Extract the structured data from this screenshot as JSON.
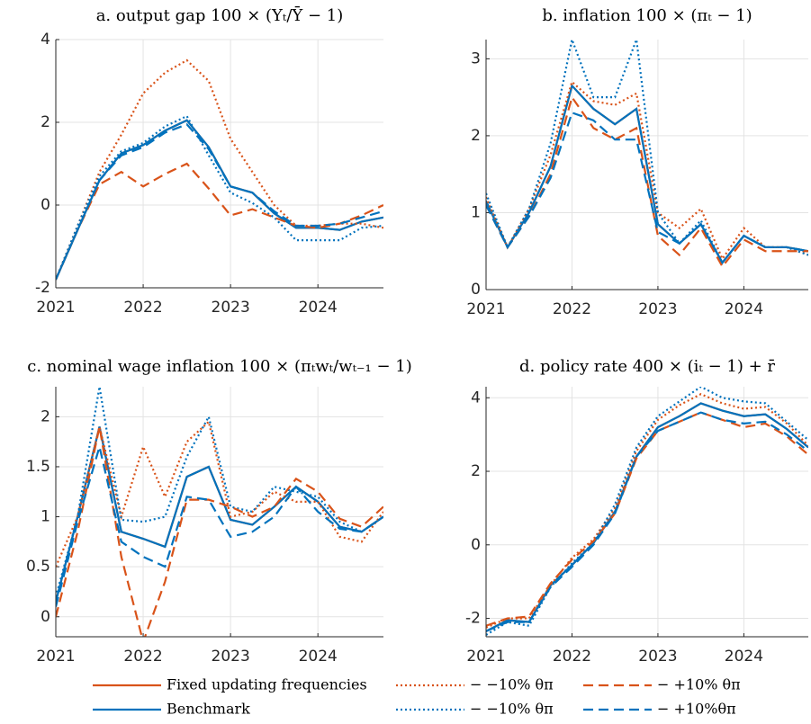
{
  "chart_data": [
    {
      "type": "line",
      "title": "a. output gap 100 × (Yₜ/Ȳ − 1)",
      "x": [
        2021,
        2021.25,
        2021.5,
        2021.75,
        2022,
        2022.25,
        2022.5,
        2022.75,
        2023,
        2023.25,
        2023.5,
        2023.75,
        2024,
        2024.25,
        2024.5,
        2024.75
      ],
      "xlim": [
        2021,
        2024.75
      ],
      "xticks": [
        2021,
        2022,
        2023,
        2024
      ],
      "ylim": [
        -2,
        4
      ],
      "yticks": [
        -2,
        0,
        2,
        4
      ],
      "grid": true,
      "series": [
        {
          "name": "Fixed updating frequencies",
          "color": "#d95319",
          "dash": "solid",
          "values": [
            -1.8,
            -0.6,
            0.6,
            1.25,
            1.45,
            1.8,
            2.05,
            1.4,
            0.45,
            0.3,
            -0.2,
            -0.55,
            -0.55,
            -0.6,
            -0.4,
            -0.3
          ]
        },
        {
          "name": "Benchmark",
          "color": "#0072bd",
          "dash": "solid",
          "values": [
            -1.8,
            -0.6,
            0.6,
            1.25,
            1.45,
            1.8,
            2.05,
            1.4,
            0.45,
            0.3,
            -0.2,
            -0.55,
            -0.55,
            -0.6,
            -0.4,
            -0.3
          ]
        },
        {
          "name": "− −10% θπ",
          "color": "#d95319",
          "dash": "dotted",
          "values": [
            -1.8,
            -0.5,
            0.8,
            1.7,
            2.7,
            3.2,
            3.5,
            3.0,
            1.6,
            0.8,
            0.0,
            -0.5,
            -0.5,
            -0.45,
            -0.45,
            -0.55
          ]
        },
        {
          "name": "− −10% θπ",
          "color": "#0072bd",
          "dash": "dotted",
          "values": [
            -1.8,
            -0.5,
            0.7,
            1.3,
            1.5,
            1.9,
            2.15,
            1.2,
            0.3,
            0.05,
            -0.3,
            -0.85,
            -0.85,
            -0.85,
            -0.55,
            -0.5
          ]
        },
        {
          "name": "− +10% θπ",
          "color": "#d95319",
          "dash": "dashed",
          "values": [
            -1.8,
            -0.6,
            0.5,
            0.8,
            0.45,
            0.75,
            1.0,
            0.4,
            -0.25,
            -0.1,
            -0.3,
            -0.5,
            -0.55,
            -0.45,
            -0.25,
            0.0
          ]
        },
        {
          "name": "− +10%θπ",
          "color": "#0072bd",
          "dash": "dashed",
          "values": [
            -1.8,
            -0.6,
            0.6,
            1.2,
            1.4,
            1.75,
            1.95,
            1.35,
            0.45,
            0.3,
            -0.15,
            -0.5,
            -0.5,
            -0.45,
            -0.3,
            -0.15
          ]
        }
      ]
    },
    {
      "type": "line",
      "title": "b. inflation 100 × (πₜ − 1)",
      "x": [
        2021,
        2021.25,
        2021.5,
        2021.75,
        2022,
        2022.25,
        2022.5,
        2022.75,
        2023,
        2023.25,
        2023.5,
        2023.75,
        2024,
        2024.25,
        2024.5,
        2024.75
      ],
      "xlim": [
        2021,
        2024.75
      ],
      "xticks": [
        2021,
        2022,
        2023,
        2024
      ],
      "ylim": [
        0,
        3.25
      ],
      "yticks": [
        0,
        1,
        2,
        3
      ],
      "grid": true,
      "series": [
        {
          "color": "#d95319",
          "dash": "solid",
          "values": [
            1.15,
            0.55,
            1.0,
            1.6,
            2.65,
            2.35,
            2.15,
            2.35,
            0.85,
            0.6,
            0.85,
            0.35,
            0.7,
            0.55,
            0.55,
            0.5
          ]
        },
        {
          "color": "#0072bd",
          "dash": "solid",
          "values": [
            1.15,
            0.55,
            1.0,
            1.6,
            2.65,
            2.35,
            2.15,
            2.35,
            0.85,
            0.6,
            0.85,
            0.35,
            0.7,
            0.55,
            0.55,
            0.5
          ]
        },
        {
          "color": "#d95319",
          "dash": "dotted",
          "values": [
            1.2,
            0.55,
            1.05,
            1.75,
            2.7,
            2.45,
            2.4,
            2.55,
            1.0,
            0.8,
            1.05,
            0.4,
            0.8,
            0.55,
            0.55,
            0.45
          ]
        },
        {
          "color": "#0072bd",
          "dash": "dotted",
          "values": [
            1.25,
            0.55,
            1.05,
            1.9,
            3.25,
            2.5,
            2.5,
            3.25,
            1.0,
            0.6,
            0.9,
            0.35,
            0.7,
            0.55,
            0.55,
            0.45
          ]
        },
        {
          "color": "#d95319",
          "dash": "dashed",
          "values": [
            1.1,
            0.55,
            0.95,
            1.5,
            2.5,
            2.1,
            1.95,
            2.1,
            0.7,
            0.45,
            0.8,
            0.3,
            0.65,
            0.5,
            0.5,
            0.5
          ]
        },
        {
          "color": "#0072bd",
          "dash": "dashed",
          "values": [
            1.1,
            0.55,
            0.95,
            1.45,
            2.3,
            2.2,
            1.95,
            1.95,
            0.75,
            0.6,
            0.85,
            0.35,
            0.7,
            0.55,
            0.55,
            0.5
          ]
        }
      ]
    },
    {
      "type": "line",
      "title": "c. nominal wage inflation 100 × (πₜwₜ/wₜ₋₁ − 1)",
      "x": [
        2021,
        2021.25,
        2021.5,
        2021.75,
        2022,
        2022.25,
        2022.5,
        2022.75,
        2023,
        2023.25,
        2023.5,
        2023.75,
        2024,
        2024.25,
        2024.5,
        2024.75
      ],
      "xlim": [
        2021,
        2024.75
      ],
      "xticks": [
        2021,
        2022,
        2023,
        2024
      ],
      "ylim": [
        -0.2,
        2.3
      ],
      "yticks": [
        0,
        0.5,
        1,
        1.5,
        2
      ],
      "grid": true,
      "series": [
        {
          "color": "#d95319",
          "dash": "solid",
          "values": [
            0.15,
            1.0,
            1.9,
            0.85,
            0.78,
            0.7,
            1.4,
            1.5,
            0.97,
            0.92,
            1.1,
            1.3,
            1.15,
            0.9,
            0.85,
            1.0
          ]
        },
        {
          "color": "#0072bd",
          "dash": "solid",
          "values": [
            0.15,
            1.0,
            1.9,
            0.85,
            0.78,
            0.7,
            1.4,
            1.5,
            0.97,
            0.92,
            1.1,
            1.3,
            1.15,
            0.9,
            0.85,
            1.0
          ]
        },
        {
          "color": "#d95319",
          "dash": "dotted",
          "values": [
            0.5,
            1.0,
            1.9,
            1.0,
            1.7,
            1.2,
            1.75,
            1.95,
            1.0,
            1.05,
            1.25,
            1.15,
            1.15,
            0.8,
            0.75,
            1.05
          ]
        },
        {
          "color": "#0072bd",
          "dash": "dotted",
          "values": [
            0.2,
            1.0,
            2.3,
            0.97,
            0.95,
            1.0,
            1.6,
            2.0,
            1.1,
            1.05,
            1.3,
            1.25,
            1.2,
            0.95,
            0.85,
            1.0
          ]
        },
        {
          "color": "#d95319",
          "dash": "dashed",
          "values": [
            0.0,
            0.85,
            1.9,
            0.6,
            -0.25,
            0.35,
            1.17,
            1.17,
            1.1,
            1.0,
            1.1,
            1.38,
            1.25,
            0.98,
            0.9,
            1.1
          ]
        },
        {
          "color": "#0072bd",
          "dash": "dashed",
          "values": [
            0.1,
            0.95,
            1.7,
            0.75,
            0.6,
            0.5,
            1.2,
            1.17,
            0.8,
            0.85,
            1.0,
            1.3,
            1.05,
            0.88,
            0.85,
            1.0
          ]
        }
      ]
    },
    {
      "type": "line",
      "title": "d. policy rate 400 × (iₜ − 1) + r̄",
      "x": [
        2021,
        2021.25,
        2021.5,
        2021.75,
        2022,
        2022.25,
        2022.5,
        2022.75,
        2023,
        2023.25,
        2023.5,
        2023.75,
        2024,
        2024.25,
        2024.5,
        2024.75
      ],
      "xlim": [
        2021,
        2024.75
      ],
      "xticks": [
        2021,
        2022,
        2023,
        2024
      ],
      "ylim": [
        -2.5,
        4.3
      ],
      "yticks": [
        -2,
        0,
        2,
        4
      ],
      "grid": true,
      "series": [
        {
          "color": "#d95319",
          "dash": "solid",
          "values": [
            -2.35,
            -2.05,
            -2.1,
            -1.1,
            -0.55,
            0.05,
            0.9,
            2.4,
            3.2,
            3.5,
            3.85,
            3.65,
            3.5,
            3.55,
            3.15,
            2.65
          ]
        },
        {
          "color": "#0072bd",
          "dash": "solid",
          "values": [
            -2.35,
            -2.05,
            -2.1,
            -1.1,
            -0.55,
            0.05,
            0.9,
            2.4,
            3.2,
            3.5,
            3.85,
            3.65,
            3.5,
            3.55,
            3.15,
            2.65
          ]
        },
        {
          "color": "#d95319",
          "dash": "dotted",
          "values": [
            -2.25,
            -2.0,
            -2.0,
            -1.1,
            -0.35,
            0.15,
            1.0,
            2.55,
            3.4,
            3.8,
            4.1,
            3.85,
            3.7,
            3.75,
            3.3,
            2.7
          ]
        },
        {
          "color": "#0072bd",
          "dash": "dotted",
          "values": [
            -2.45,
            -2.1,
            -2.2,
            -1.15,
            -0.5,
            0.05,
            1.1,
            2.65,
            3.5,
            3.9,
            4.3,
            4.0,
            3.9,
            3.85,
            3.35,
            2.85
          ]
        },
        {
          "color": "#d95319",
          "dash": "dashed",
          "values": [
            -2.2,
            -2.0,
            -1.95,
            -1.05,
            -0.4,
            0.1,
            0.85,
            2.35,
            3.1,
            3.35,
            3.6,
            3.4,
            3.2,
            3.3,
            2.95,
            2.45
          ]
        },
        {
          "color": "#0072bd",
          "dash": "dashed",
          "values": [
            -2.35,
            -2.1,
            -2.1,
            -1.15,
            -0.6,
            0.0,
            0.85,
            2.4,
            3.1,
            3.35,
            3.6,
            3.4,
            3.3,
            3.35,
            3.0,
            2.55
          ]
        }
      ]
    }
  ]
}
